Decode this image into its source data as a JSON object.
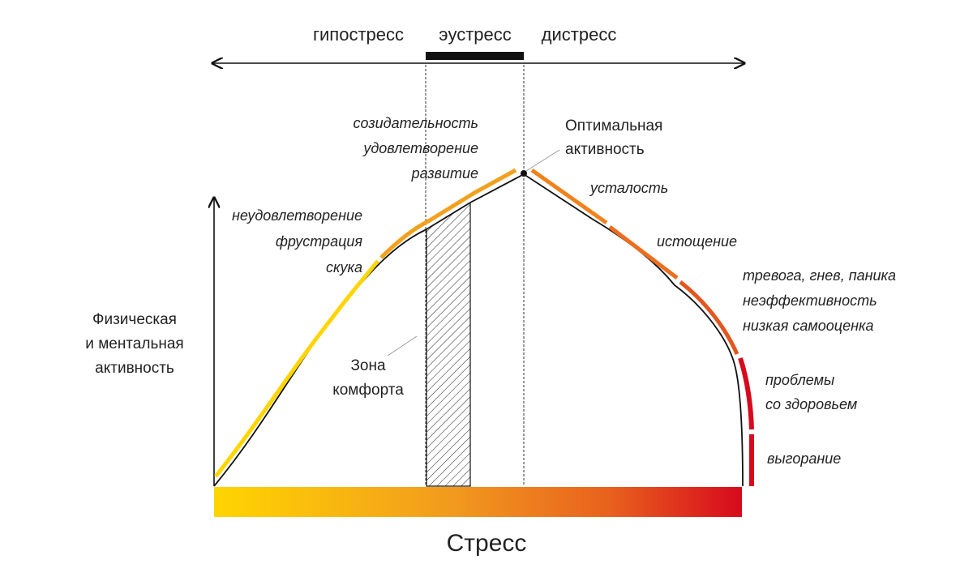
{
  "zones": {
    "hypo": "гипостресс",
    "eu": "эустресс",
    "dis": "дистресс"
  },
  "y_axis_label": [
    "Физическая",
    "и ментальная",
    "активность"
  ],
  "x_axis_label": "Стресс",
  "optimum_label": [
    "Оптимальная",
    "активность"
  ],
  "comfort_zone_label": [
    "Зона",
    "комфорта"
  ],
  "states": {
    "low": [
      "неудовлетворение",
      "фрустрация",
      "скука"
    ],
    "good": [
      "созидательность",
      "удовлетворение",
      "развитие"
    ],
    "fatigue": [
      "усталость"
    ],
    "exhaustion": [
      "истощение"
    ],
    "anxiety": [
      "тревога, гнев, паника",
      "неэффективность",
      "низкая самооценка"
    ],
    "health": [
      "проблемы",
      "со здоровьем"
    ],
    "burnout": [
      "выгорание"
    ]
  },
  "colors": {
    "yellow": "#FFD500",
    "orange": "#F29A1E",
    "dark_orange": "#E2571F",
    "red": "#D7091D",
    "axis": "#111111"
  }
}
